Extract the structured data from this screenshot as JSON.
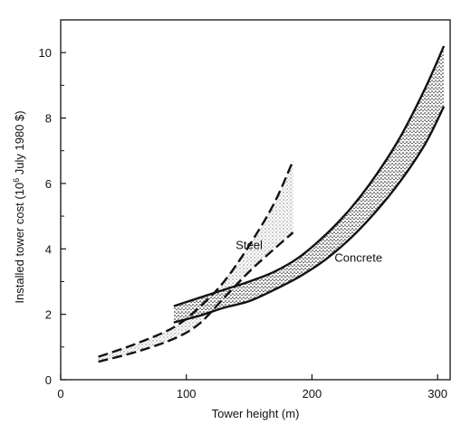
{
  "chart_data": {
    "type": "area",
    "title": "",
    "xlabel": "Tower height (m)",
    "ylabel_main": "Installed tower cost (10",
    "ylabel_sup": "6",
    "ylabel_tail": " July 1980 $)",
    "xlim": [
      0,
      310
    ],
    "ylim": [
      0,
      11
    ],
    "x_ticks": [
      0,
      100,
      200,
      300
    ],
    "y_ticks": [
      0,
      2,
      4,
      6,
      8,
      10
    ],
    "grid": false,
    "legend": "none",
    "series": [
      {
        "name": "Steel",
        "style": "dashed",
        "fill": "light-stipple",
        "upper": {
          "x": [
            30,
            60,
            90,
            110,
            130,
            150,
            170,
            185
          ],
          "y": [
            0.7,
            1.1,
            1.6,
            2.2,
            3.0,
            4.1,
            5.4,
            6.7
          ]
        },
        "lower": {
          "x": [
            30,
            60,
            90,
            110,
            130,
            150,
            170,
            185
          ],
          "y": [
            0.55,
            0.85,
            1.25,
            1.7,
            2.5,
            3.3,
            4.0,
            4.5
          ]
        }
      },
      {
        "name": "Concrete",
        "style": "solid",
        "fill": "dense-stipple",
        "upper": {
          "x": [
            90,
            110,
            130,
            150,
            170,
            190,
            210,
            230,
            250,
            270,
            290,
            305
          ],
          "y": [
            2.25,
            2.5,
            2.75,
            3.0,
            3.3,
            3.75,
            4.4,
            5.2,
            6.2,
            7.4,
            8.9,
            10.2
          ]
        },
        "lower": {
          "x": [
            90,
            110,
            130,
            150,
            170,
            190,
            210,
            230,
            250,
            270,
            290,
            305
          ],
          "y": [
            1.75,
            1.95,
            2.2,
            2.4,
            2.75,
            3.15,
            3.65,
            4.3,
            5.1,
            6.05,
            7.2,
            8.35
          ]
        }
      }
    ],
    "annotations": [
      {
        "text": "Steel",
        "x": 150,
        "y": 4.0
      },
      {
        "text": "Concrete",
        "x": 237,
        "y": 3.6
      }
    ]
  }
}
